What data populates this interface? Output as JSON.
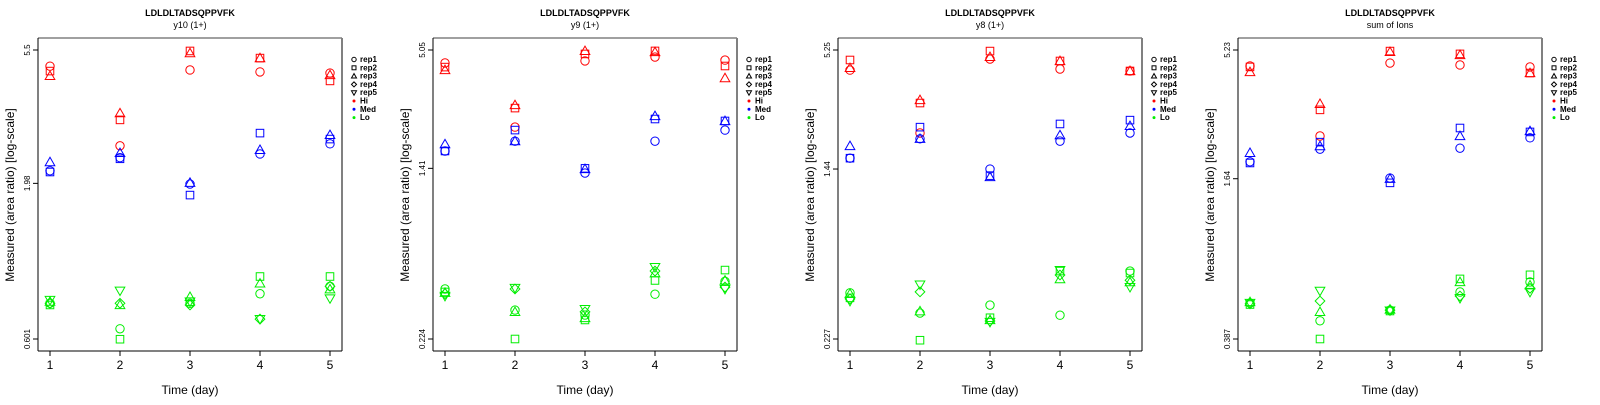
{
  "chart_data": [
    {
      "type": "scatter",
      "title": "LDLDLTADSQPPVFK",
      "subtitle": "y10 (1+)",
      "xlabel": "Time (day)",
      "ylabel": "Measured (area ratio) [log-scale]",
      "y_scale": "log",
      "ylim": [
        0.601,
        5.5
      ],
      "y_ticks": [
        "0.601",
        "1.98",
        "5.5"
      ],
      "y_tick_values": [
        0.601,
        1.98,
        5.5
      ],
      "x_ticks": [
        1,
        2,
        3,
        4,
        5
      ],
      "grid": false,
      "legend_position": "right",
      "groups": [
        {
          "name": "Hi",
          "color": "#ff0000",
          "reps": {
            "rep1": [
              4.86,
              2.64,
              4.72,
              4.65,
              4.61
            ],
            "rep2": [
              4.68,
              3.22,
              5.46,
              5.17,
              4.34
            ],
            "rep3": [
              4.51,
              3.39,
              5.37,
              5.17,
              4.54
            ]
          }
        },
        {
          "name": "Med",
          "color": "#0000ff",
          "reps": {
            "rep1": [
              2.18,
              2.41,
              1.97,
              2.48,
              2.68
            ],
            "rep2": [
              2.16,
              2.39,
              1.81,
              2.91,
              2.78
            ],
            "rep3": [
              2.33,
              2.5,
              1.99,
              2.56,
              2.87
            ]
          }
        },
        {
          "name": "Lo",
          "color": "#00ee00",
          "reps": {
            "rep1": [
              0.79,
              0.65,
              0.79,
              0.85,
              0.9
            ],
            "rep2": [
              0.78,
              0.6,
              0.8,
              0.97,
              0.97
            ],
            "rep3": [
              0.8,
              0.78,
              0.83,
              0.92,
              0.88
            ],
            "rep4": [
              0.79,
              0.79,
              0.78,
              0.7,
              0.9
            ],
            "rep5": [
              0.81,
              0.87,
              0.8,
              0.7,
              0.82
            ]
          }
        }
      ]
    },
    {
      "type": "scatter",
      "title": "LDLDLTADSQPPVFK",
      "subtitle": "y9 (1+)",
      "xlabel": "Time (day)",
      "ylabel": "Measured (area ratio) [log-scale]",
      "y_scale": "log",
      "ylim": [
        0.224,
        5.05
      ],
      "y_ticks": [
        "0.224",
        "1.41",
        "5.05"
      ],
      "y_tick_values": [
        0.224,
        1.41,
        5.05
      ],
      "x_ticks": [
        1,
        2,
        3,
        4,
        5
      ],
      "grid": false,
      "legend_position": "right",
      "groups": [
        {
          "name": "Hi",
          "color": "#ff0000",
          "reps": {
            "rep1": [
              4.39,
              2.2,
              4.49,
              4.68,
              4.53
            ],
            "rep2": [
              4.2,
              2.7,
              4.84,
              5.0,
              4.25
            ],
            "rep3": [
              4.07,
              2.79,
              5.0,
              4.94,
              3.73
            ]
          }
        },
        {
          "name": "Med",
          "color": "#0000ff",
          "reps": {
            "rep1": [
              1.7,
              1.89,
              1.34,
              1.89,
              2.13
            ],
            "rep2": [
              1.7,
              2.13,
              1.41,
              2.4,
              2.35
            ],
            "rep3": [
              1.83,
              1.89,
              1.4,
              2.48,
              2.35
            ]
          }
        },
        {
          "name": "Lo",
          "color": "#00ee00",
          "reps": {
            "rep1": [
              0.384,
              0.306,
              0.29,
              0.363,
              0.417
            ],
            "rep2": [
              0.372,
              0.224,
              0.275,
              0.421,
              0.471
            ],
            "rep3": [
              0.369,
              0.3,
              0.281,
              0.455,
              0.421
            ],
            "rep4": [
              0.365,
              0.384,
              0.3,
              0.466,
              0.392
            ],
            "rep5": [
              0.356,
              0.388,
              0.309,
              0.486,
              0.384
            ]
          }
        }
      ]
    },
    {
      "type": "scatter",
      "title": "LDLDLTADSQPPVFK",
      "subtitle": "y8 (1+)",
      "xlabel": "Time (day)",
      "ylabel": "Measured (area ratio) [log-scale]",
      "y_scale": "log",
      "ylim": [
        0.227,
        5.25
      ],
      "y_ticks": [
        "0.227",
        "1.44",
        "5.25"
      ],
      "y_tick_values": [
        0.227,
        1.44,
        5.25
      ],
      "x_ticks": [
        1,
        2,
        3,
        4,
        5
      ],
      "grid": false,
      "legend_position": "right",
      "groups": [
        {
          "name": "Hi",
          "color": "#ff0000",
          "reps": {
            "rep1": [
              4.22,
              2.13,
              4.76,
              4.27,
              4.18
            ],
            "rep2": [
              4.71,
              2.95,
              5.19,
              4.66,
              4.18
            ],
            "rep3": [
              4.32,
              3.05,
              4.87,
              4.66,
              4.18
            ]
          }
        },
        {
          "name": "Med",
          "color": "#0000ff",
          "reps": {
            "rep1": [
              1.62,
              2.0,
              1.44,
              1.95,
              2.13
            ],
            "rep2": [
              1.62,
              2.27,
              1.34,
              2.35,
              2.45
            ],
            "rep3": [
              1.85,
              2.0,
              1.32,
              2.08,
              2.3
            ]
          }
        },
        {
          "name": "Lo",
          "color": "#00ee00",
          "reps": {
            "rep1": [
              0.375,
              0.301,
              0.328,
              0.294,
              0.475
            ],
            "rep2": [
              0.355,
              0.224,
              0.286,
              0.475,
              0.465
            ],
            "rep3": [
              0.371,
              0.307,
              0.279,
              0.435,
              0.421
            ],
            "rep4": [
              0.351,
              0.379,
              0.276,
              0.455,
              0.43
            ],
            "rep5": [
              0.343,
              0.41,
              0.273,
              0.48,
              0.399
            ]
          }
        }
      ]
    },
    {
      "type": "scatter",
      "title": "LDLDLTADSQPPVFK",
      "subtitle": "sum of Ions",
      "xlabel": "Time (day)",
      "ylabel": "Measured (area ratio) [log-scale]",
      "y_scale": "log",
      "ylim": [
        0.387,
        5.23
      ],
      "y_ticks": [
        "0.387",
        "1.64",
        "5.23"
      ],
      "y_tick_values": [
        0.387,
        1.64,
        5.23
      ],
      "x_ticks": [
        1,
        2,
        3,
        4,
        5
      ],
      "grid": false,
      "legend_position": "right",
      "groups": [
        {
          "name": "Hi",
          "color": "#ff0000",
          "reps": {
            "rep1": [
              4.53,
              2.41,
              4.65,
              4.57,
              4.49
            ],
            "rep2": [
              4.49,
              3.05,
              5.18,
              5.05,
              4.25
            ],
            "rep3": [
              4.29,
              3.22,
              5.14,
              5.0,
              4.25
            ]
          }
        },
        {
          "name": "Med",
          "color": "#0000ff",
          "reps": {
            "rep1": [
              1.91,
              2.14,
              1.65,
              2.16,
              2.37
            ],
            "rep2": [
              1.89,
              2.28,
              1.58,
              2.59,
              2.5
            ],
            "rep3": [
              2.07,
              2.2,
              1.64,
              2.41,
              2.52
            ]
          }
        },
        {
          "name": "Lo",
          "color": "#00ee00",
          "reps": {
            "rep1": [
              0.535,
              0.456,
              0.502,
              0.591,
              0.647
            ],
            "rep2": [
              0.528,
              0.387,
              0.498,
              0.665,
              0.69
            ],
            "rep3": [
              0.54,
              0.494,
              0.505,
              0.647,
              0.628
            ],
            "rep4": [
              0.531,
              0.545,
              0.502,
              0.57,
              0.611
            ],
            "rep5": [
              0.535,
              0.597,
              0.5,
              0.559,
              0.591
            ]
          }
        }
      ]
    }
  ],
  "legend": {
    "entries": [
      {
        "label": "rep1",
        "symbol": "circle"
      },
      {
        "label": "rep2",
        "symbol": "square"
      },
      {
        "label": "rep3",
        "symbol": "triangle-up"
      },
      {
        "label": "rep4",
        "symbol": "diamond"
      },
      {
        "label": "rep5",
        "symbol": "triangle-down"
      },
      {
        "label": "Hi",
        "symbol": "dot",
        "color": "#ff0000"
      },
      {
        "label": "Med",
        "symbol": "dot",
        "color": "#0000ff"
      },
      {
        "label": "Lo",
        "symbol": "dot",
        "color": "#00ee00"
      }
    ]
  }
}
